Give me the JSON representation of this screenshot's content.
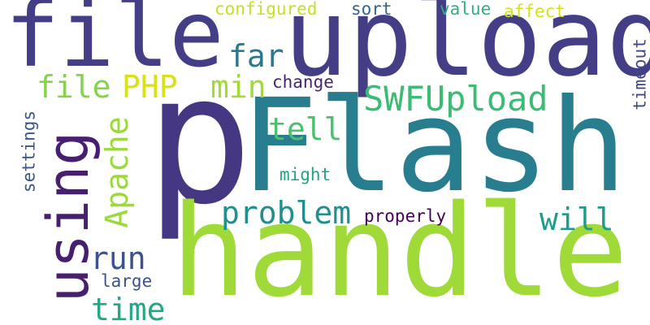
{
  "word_cloud": {
    "colors": {
      "background": "#ffffff"
    },
    "words": [
      {
        "text": "p",
        "color": "#453781"
      },
      {
        "text": "Flash",
        "color": "#287d8e"
      },
      {
        "text": "handle",
        "color": "#a0da39"
      },
      {
        "text": "upload",
        "color": "#433e85"
      },
      {
        "text": "file",
        "color": "#433e85"
      },
      {
        "text": "using",
        "color": "#481f70"
      },
      {
        "text": "SWFUpload",
        "color": "#3cbb75"
      },
      {
        "text": "Apache",
        "color": "#9bd93c"
      },
      {
        "text": "problem",
        "color": "#218f8d"
      },
      {
        "text": "PHP",
        "color": "#d8e219"
      },
      {
        "text": "file",
        "color": "#84d44b"
      },
      {
        "text": "far",
        "color": "#2a788e"
      },
      {
        "text": "min",
        "color": "#a2da37"
      },
      {
        "text": "tell",
        "color": "#4ac16d"
      },
      {
        "text": "will",
        "color": "#1e9c89"
      },
      {
        "text": "run",
        "color": "#3b528b"
      },
      {
        "text": "time",
        "color": "#22a884"
      },
      {
        "text": "configured",
        "color": "#c8e020"
      },
      {
        "text": "sort",
        "color": "#31668e"
      },
      {
        "text": "value",
        "color": "#2db27d"
      },
      {
        "text": "affect",
        "color": "#d2e21b"
      },
      {
        "text": "change",
        "color": "#482475"
      },
      {
        "text": "timeout",
        "color": "#3f4788"
      },
      {
        "text": "settings",
        "color": "#3a548c"
      },
      {
        "text": "might",
        "color": "#20a386"
      },
      {
        "text": "properly",
        "color": "#440154"
      },
      {
        "text": "large",
        "color": "#3b528b"
      }
    ]
  }
}
